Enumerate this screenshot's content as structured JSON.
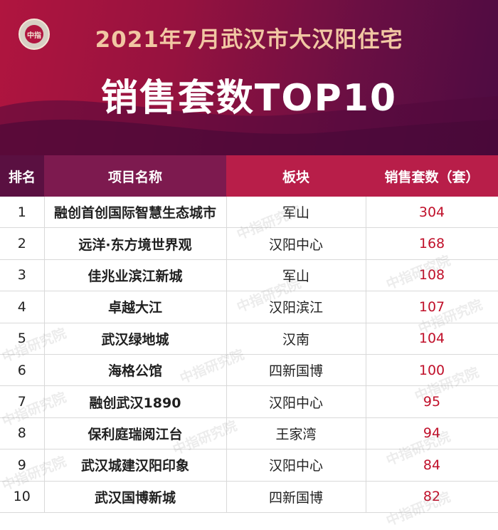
{
  "header": {
    "logo_text": "中指",
    "title_line1": "2021年7月武汉市大汉阳住宅",
    "title_line2": "销售套数TOP10"
  },
  "table": {
    "columns": [
      "排名",
      "项目名称",
      "板块",
      "销售套数（套）"
    ],
    "rows": [
      {
        "rank": "1",
        "name": "融创首创国际智慧生态城市",
        "area": "军山",
        "sales": "304"
      },
      {
        "rank": "2",
        "name": "远洋·东方境世界观",
        "area": "汉阳中心",
        "sales": "168"
      },
      {
        "rank": "3",
        "name": "佳兆业滨江新城",
        "area": "军山",
        "sales": "108"
      },
      {
        "rank": "4",
        "name": "卓越大江",
        "area": "汉阳滨江",
        "sales": "107"
      },
      {
        "rank": "5",
        "name": "武汉绿地城",
        "area": "汉南",
        "sales": "104"
      },
      {
        "rank": "6",
        "name": "海格公馆",
        "area": "四新国博",
        "sales": "100"
      },
      {
        "rank": "7",
        "name": "融创武汉1890",
        "area": "汉阳中心",
        "sales": "95"
      },
      {
        "rank": "8",
        "name": "保利庭瑞阅江台",
        "area": "王家湾",
        "sales": "94"
      },
      {
        "rank": "9",
        "name": "武汉城建汉阳印象",
        "area": "汉阳中心",
        "sales": "84"
      },
      {
        "rank": "10",
        "name": "武汉国博新城",
        "area": "四新国博",
        "sales": "82"
      }
    ]
  },
  "watermark": "中指研究院",
  "colors": {
    "header_start": "#b0153f",
    "header_end": "#4d0b42",
    "title_gold": "#f1c7a3",
    "sales_red": "#c0102a"
  }
}
